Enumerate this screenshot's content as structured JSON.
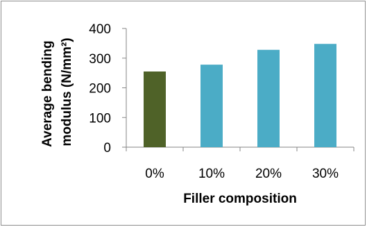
{
  "chart_data": {
    "type": "bar",
    "categories": [
      "0%",
      "10%",
      "20%",
      "30%"
    ],
    "values": [
      255,
      278,
      328,
      348
    ],
    "bar_colors": [
      "#4f6228",
      "#4bacc6",
      "#4bacc6",
      "#4bacc6"
    ],
    "title": "",
    "xlabel": "Filler composition",
    "ylabel_line1": "Average bending",
    "ylabel_line2": "modulus (N/mm²)",
    "ylim": [
      0,
      400
    ],
    "yticks": [
      "0",
      "100",
      "200",
      "300",
      "400"
    ],
    "grid": false,
    "legend": "none"
  }
}
